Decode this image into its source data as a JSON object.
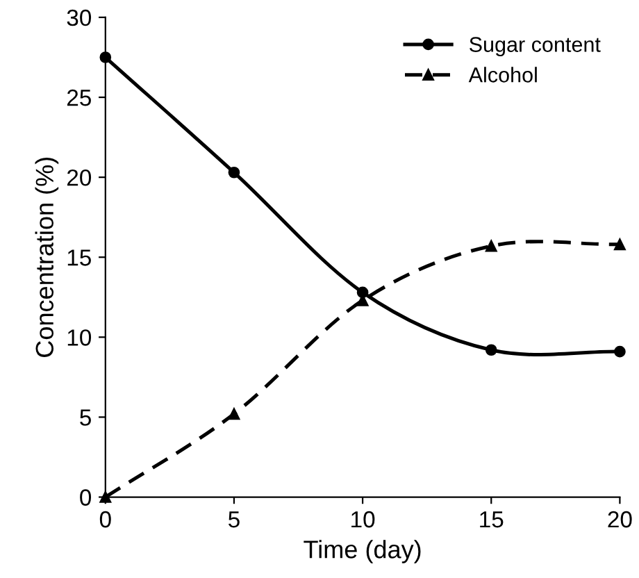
{
  "chart_data": {
    "type": "line",
    "xlabel": "Time (day)",
    "ylabel": "Concentration (%)",
    "x": [
      0,
      5,
      10,
      15,
      20
    ],
    "series": [
      {
        "name": "Sugar content",
        "color": "#000000",
        "values": [
          27.5,
          20.3,
          12.8,
          9.2,
          9.1
        ],
        "marker": "circle",
        "line_style": "solid"
      },
      {
        "name": "Alcohol",
        "color": "#000000",
        "values": [
          0,
          5.2,
          12.3,
          15.7,
          15.8
        ],
        "marker": "triangle",
        "line_style": "dashed"
      }
    ],
    "xlim": [
      0,
      20
    ],
    "xticks": [
      0,
      5,
      10,
      15,
      20
    ],
    "ylim": [
      0,
      30
    ],
    "yticks": [
      0,
      5,
      10,
      15,
      20,
      25,
      30
    ],
    "grid": false,
    "legend": "top right"
  }
}
